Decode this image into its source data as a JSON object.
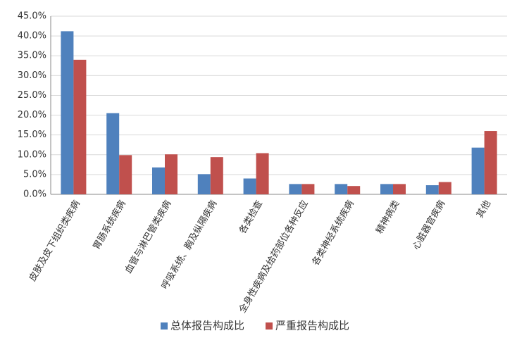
{
  "chart_data": {
    "type": "bar",
    "categories": [
      "皮肤及皮下组织类疾病",
      "胃肠系统疾病",
      "血管与淋巴管类疾病",
      "呼吸系统、胸及纵隔疾病",
      "各类检查",
      "全身性疾病及给药部位各种反应",
      "各类神经系统疾病",
      "精神病类",
      "心脏器官疾病",
      "其他"
    ],
    "series": [
      {
        "name": "总体报告构成比",
        "color": "#4f81bd",
        "values": [
          41.2,
          20.5,
          6.8,
          5.1,
          4.0,
          2.6,
          2.6,
          2.6,
          2.3,
          11.8
        ]
      },
      {
        "name": "严重报告构成比",
        "color": "#c0504d",
        "values": [
          34.0,
          9.9,
          10.1,
          9.4,
          10.4,
          2.6,
          2.1,
          2.6,
          3.1,
          16.0
        ]
      }
    ],
    "ylim": [
      0,
      45
    ],
    "yticks": [
      {
        "value": 0,
        "label": "0.0%"
      },
      {
        "value": 5,
        "label": "5.0%"
      },
      {
        "value": 10,
        "label": "10.0%"
      },
      {
        "value": 15,
        "label": "15.0%"
      },
      {
        "value": 20,
        "label": "20.0%"
      },
      {
        "value": 25,
        "label": "25.0%"
      },
      {
        "value": 30,
        "label": "30.0%"
      },
      {
        "value": 35,
        "label": "35.0%"
      },
      {
        "value": 40,
        "label": "40.0%"
      },
      {
        "value": 45,
        "label": "45.0%"
      }
    ],
    "grid": true,
    "legend": "bottom"
  }
}
